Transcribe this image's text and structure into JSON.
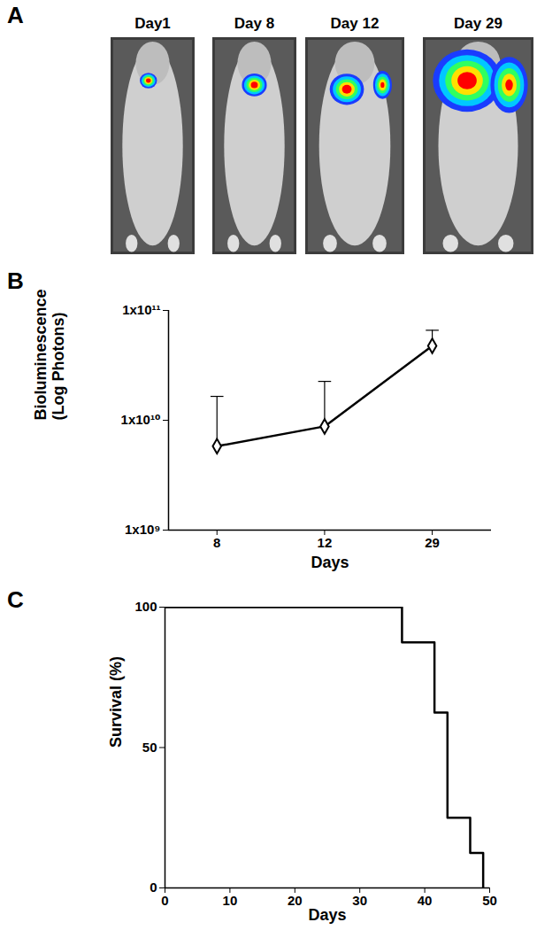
{
  "chart_data": [
    {
      "type": "image",
      "title": "A",
      "labels": [
        "Day1",
        "Day 8",
        "Day 12",
        "Day 29"
      ]
    },
    {
      "type": "line",
      "title": "B",
      "categories": [
        "8",
        "12",
        "29"
      ],
      "values": [
        5800000000,
        8800000000,
        47500000000
      ],
      "errors": [
        10700000000,
        13800000000,
        18500000000
      ],
      "xlabel": "Days",
      "ylabel": "Bioluminescence\n(Log Photons)",
      "log": "y",
      "ylim": [
        1000000000,
        100000000000
      ],
      "yticks": [
        {
          "value": 1000000000,
          "label": "1x10⁹"
        },
        {
          "value": 10000000000,
          "label": "1x10¹⁰"
        },
        {
          "value": 100000000000,
          "label": "1x10¹¹"
        }
      ],
      "marker": "diamond",
      "color": "#000000"
    },
    {
      "type": "step",
      "title": "C",
      "x": [
        0,
        36.5,
        41.5,
        43.5,
        47,
        49
      ],
      "values": [
        100,
        87.5,
        62.5,
        25,
        12.5,
        0
      ],
      "xlabel": "Days",
      "ylabel": "Survival (%)",
      "xlim": [
        0,
        50
      ],
      "xticks": [
        0,
        10,
        20,
        30,
        40,
        50
      ],
      "ylim": [
        0,
        100
      ],
      "yticks": [
        0,
        50,
        100
      ],
      "color": "#000000"
    }
  ]
}
